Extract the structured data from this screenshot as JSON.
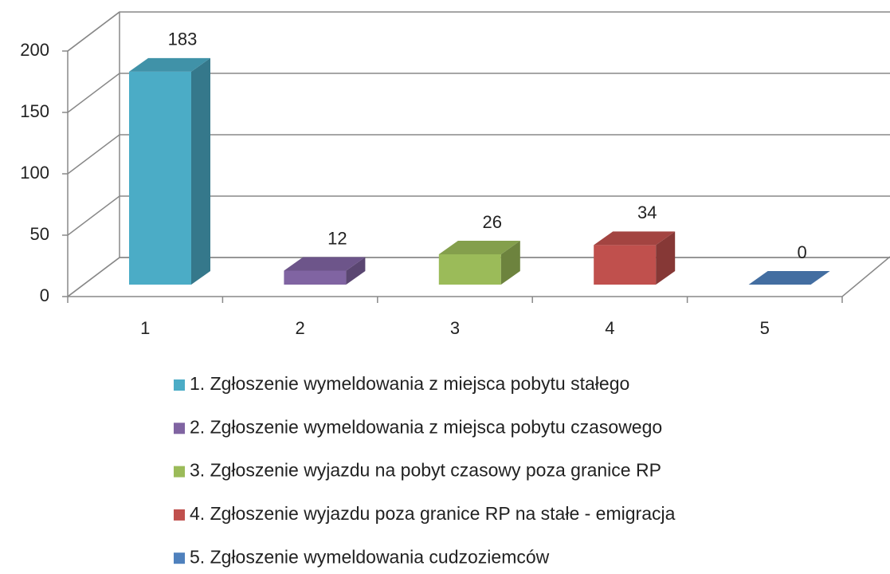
{
  "chart_data": {
    "type": "bar3d",
    "categories": [
      "1",
      "2",
      "3",
      "4",
      "5"
    ],
    "values": [
      183,
      12,
      26,
      34,
      0
    ],
    "colors": [
      "#4bacc6",
      "#8064a2",
      "#9bbb59",
      "#c0504d",
      "#4f81bd"
    ],
    "legend": [
      "1. Zgłoszenie wymeldowania z miejsca pobytu stałego",
      "2. Zgłoszenie wymeldowania z miejsca pobytu czasowego",
      "3. Zgłoszenie wyjazdu na pobyt czasowy poza granice RP",
      "4. Zgłoszenie wyjazdu poza granice RP na stałe - emigracja",
      "5. Zgłoszenie wymeldowania cudzoziemców"
    ],
    "ylim": [
      0,
      200
    ],
    "yticks": [
      0,
      50,
      100,
      150,
      200
    ],
    "grid": true
  }
}
